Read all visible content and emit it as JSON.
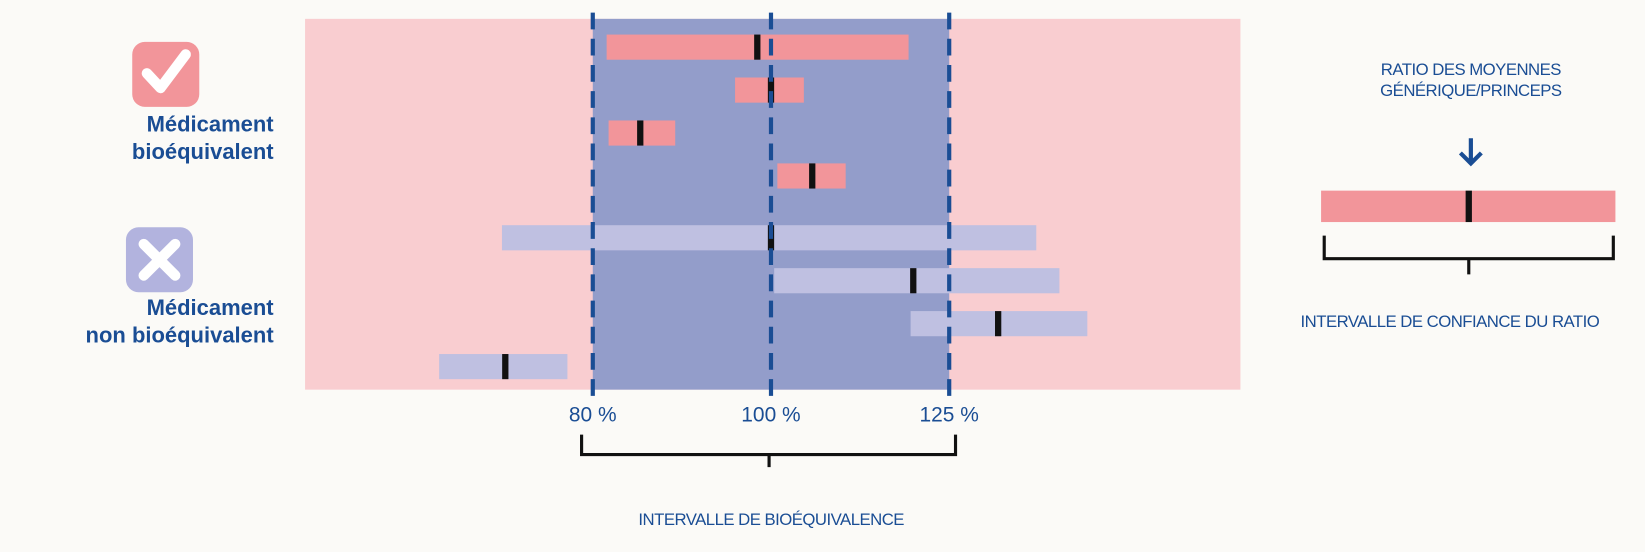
{
  "chart_data": {
    "type": "interval",
    "xscale": "log",
    "xlim": [
      55.8,
      180
    ],
    "xticks": [
      {
        "value": 80,
        "label": "80 %"
      },
      {
        "value": 100,
        "label": "100 %"
      },
      {
        "value": 125,
        "label": "125 %"
      }
    ],
    "xlabel": "INTERVALLE DE BIOÉQUIVALENCE",
    "background_color": "#f9cdd0",
    "band_color": "#939dca",
    "series": [
      {
        "name": "Médicament\nbioéquivalent",
        "color": "#f2959a",
        "low": [
          81.4,
          95.6,
          81.6,
          100.8
        ],
        "high": [
          118.8,
          104.2,
          88.7,
          109.8
        ],
        "ratio": [
          98.3,
          100,
          84.9,
          105.3
        ]
      },
      {
        "name": "Médicament\nnon bioéquivalent",
        "color": "#bfc0e1",
        "low": [
          71.4,
          100.4,
          119.1,
          66.0
        ],
        "high": [
          139.4,
          143.5,
          148.6,
          77.5
        ],
        "ratio": [
          100,
          119.5,
          132.9,
          71.7
        ]
      }
    ],
    "legend": {
      "title": "RATIO DES MOYENNES\nGÉNÉRIQUE/PRINCEPS",
      "caption": "INTERVALLE DE CONFIANCE DU RATIO"
    }
  }
}
